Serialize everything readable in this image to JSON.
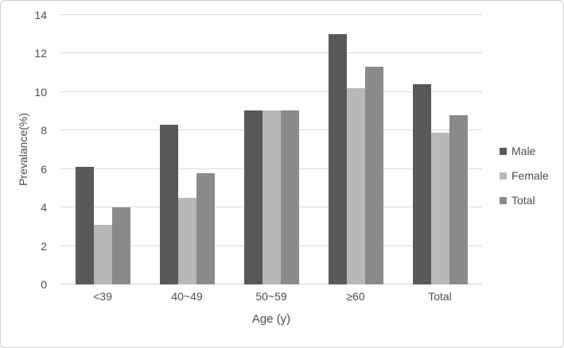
{
  "figure": {
    "background": "#ffffff",
    "border_color": "#cfcfcf"
  },
  "chart_data": {
    "type": "bar",
    "title": "",
    "xlabel": "Age (y)",
    "ylabel": "Prevalance(%)",
    "categories": [
      "<39",
      "40~49",
      "50~59",
      "≥60",
      "Total"
    ],
    "series": [
      {
        "name": "Male",
        "color": "#595959",
        "values": [
          6.1,
          8.3,
          9.05,
          13.0,
          10.4
        ]
      },
      {
        "name": "Female",
        "color": "#b8b8b8",
        "values": [
          3.1,
          4.5,
          9.05,
          10.2,
          7.9
        ]
      },
      {
        "name": "Total",
        "color": "#8a8a8a",
        "values": [
          4.0,
          5.8,
          9.05,
          11.3,
          8.8
        ]
      }
    ],
    "ylim": [
      0,
      14
    ],
    "yticks": [
      0,
      2,
      4,
      6,
      8,
      10,
      12,
      14
    ],
    "grid": true,
    "legend_position": "right",
    "gridline_color": "#d9d9d9",
    "axis_line_color": "#d0d0d0",
    "text_color": "#4d4d4d"
  }
}
